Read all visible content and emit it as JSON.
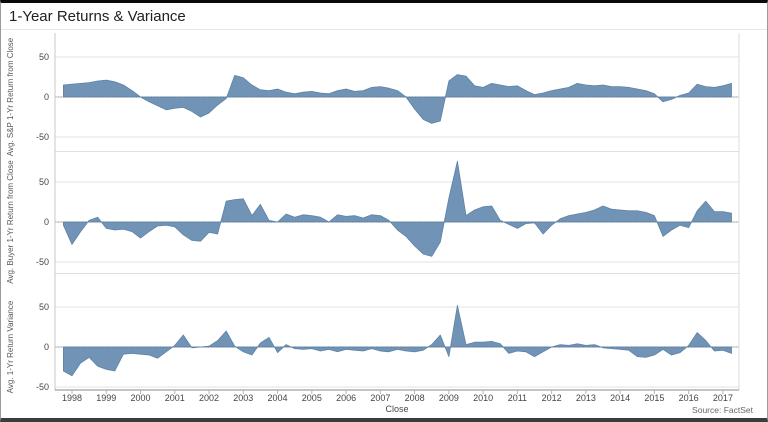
{
  "title": "1-Year Returns & Variance",
  "source": "Source: FactSet",
  "x_axis": {
    "label": "Close",
    "years": [
      "1998",
      "1999",
      "2000",
      "2001",
      "2002",
      "2003",
      "2004",
      "2005",
      "2006",
      "2007",
      "2008",
      "2009",
      "2010",
      "2011",
      "2012",
      "2013",
      "2014",
      "2015",
      "2016",
      "2017"
    ]
  },
  "colors": {
    "area_fill": "#7193b5",
    "area_stroke": "#5d84a9",
    "gridline": "#e3e3e3",
    "zero_line": "#bdbdbd",
    "zero_overlay": "rgba(60,60,60,0.30)",
    "axis_line": "#8a8a8a",
    "tick": "#b5b5b5",
    "divider": "#e0e0e0",
    "text": "#454545"
  },
  "chart_data": {
    "type": "area",
    "title": "1-Year Returns & Variance",
    "xlabel": "Close",
    "grid": true,
    "legend": "none",
    "yticks": [
      50,
      0,
      -50
    ],
    "ylim": [
      -65,
      85
    ],
    "xlim": [
      1997.75,
      2017.25
    ],
    "x": [
      1997.75,
      1998,
      1998.25,
      1998.5,
      1998.75,
      1999,
      1999.25,
      1999.5,
      1999.75,
      2000,
      2000.25,
      2000.5,
      2000.75,
      2001,
      2001.25,
      2001.5,
      2001.75,
      2002,
      2002.25,
      2002.5,
      2002.75,
      2003,
      2003.25,
      2003.5,
      2003.75,
      2004,
      2004.25,
      2004.5,
      2004.75,
      2005,
      2005.25,
      2005.5,
      2005.75,
      2006,
      2006.25,
      2006.5,
      2006.75,
      2007,
      2007.25,
      2007.5,
      2007.75,
      2008,
      2008.25,
      2008.5,
      2008.75,
      2009,
      2009.25,
      2009.5,
      2009.75,
      2010,
      2010.25,
      2010.5,
      2010.75,
      2011,
      2011.25,
      2011.5,
      2011.75,
      2012,
      2012.25,
      2012.5,
      2012.75,
      2013,
      2013.25,
      2013.5,
      2013.75,
      2014,
      2014.25,
      2014.5,
      2014.75,
      2015,
      2015.25,
      2015.5,
      2015.75,
      2016,
      2016.25,
      2016.5,
      2016.75,
      2017,
      2017.25
    ],
    "series": [
      {
        "name": "sp-1yr-return",
        "ylabel": "Avg. S&P 1-Yr Return from Close",
        "values": [
          15,
          16,
          17,
          18,
          20,
          21,
          19,
          15,
          8,
          0,
          -6,
          -11,
          -16,
          -14,
          -13,
          -18,
          -25,
          -20,
          -10,
          -2,
          27,
          24,
          15,
          9,
          8,
          10,
          6,
          4,
          6,
          7,
          5,
          4,
          8,
          10,
          7,
          8,
          12,
          13,
          11,
          8,
          0,
          -15,
          -28,
          -33,
          -30,
          20,
          28,
          26,
          14,
          12,
          17,
          15,
          13,
          14,
          8,
          3,
          5,
          8,
          10,
          12,
          17,
          15,
          14,
          15,
          13,
          13,
          12,
          10,
          8,
          4,
          -6,
          -3,
          2,
          5,
          16,
          13,
          12,
          14,
          17
        ]
      },
      {
        "name": "buyer-1yr-return",
        "ylabel": "Avg. Buyer 1-Yr Return from Close",
        "values": [
          -4,
          -28,
          -12,
          2,
          6,
          -8,
          -10,
          -9,
          -12,
          -20,
          -12,
          -5,
          -4,
          -6,
          -16,
          -23,
          -24,
          -13,
          -15,
          26,
          28,
          29,
          8,
          22,
          2,
          0,
          10,
          6,
          9,
          8,
          6,
          0,
          9,
          7,
          8,
          5,
          9,
          8,
          2,
          -10,
          -18,
          -30,
          -40,
          -43,
          -25,
          30,
          76,
          8,
          15,
          19,
          20,
          2,
          -3,
          -8,
          -2,
          -1,
          -15,
          -4,
          4,
          8,
          10,
          12,
          15,
          20,
          16,
          15,
          14,
          14,
          12,
          8,
          -18,
          -10,
          -4,
          -7,
          14,
          26,
          13,
          13,
          11
        ]
      },
      {
        "name": "1yr-return-variance",
        "ylabel": "Avg. 1-Yr Return Variance",
        "values": [
          -30,
          -36,
          -20,
          -13,
          -24,
          -28,
          -30,
          -9,
          -8,
          -9,
          -10,
          -14,
          -6,
          2,
          15,
          -1,
          0,
          1,
          8,
          20,
          1,
          -6,
          -10,
          5,
          12,
          -7,
          3,
          -2,
          -3,
          -2,
          -5,
          -3,
          -6,
          -3,
          -4,
          -5,
          -2,
          -5,
          -6,
          -3,
          -5,
          -6,
          -4,
          3,
          15,
          -12,
          52,
          3,
          6,
          6,
          7,
          4,
          -8,
          -5,
          -6,
          -12,
          -6,
          0,
          3,
          2,
          4,
          2,
          3,
          -1,
          -2,
          -3,
          -4,
          -12,
          -13,
          -10,
          -3,
          -10,
          -7,
          2,
          18,
          8,
          -5,
          -4,
          -8
        ]
      }
    ]
  }
}
